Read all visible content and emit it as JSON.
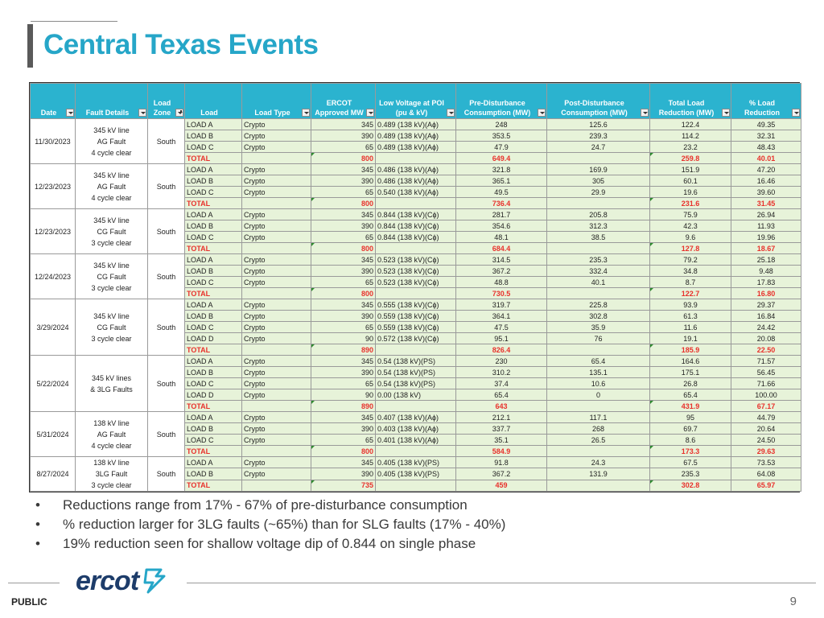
{
  "slide": {
    "title": "Central Texas Events",
    "classification": "PUBLIC",
    "page_number": "9",
    "logo": {
      "text": "ercot",
      "mark": "ercot-bolt-logo",
      "color": "#1d3c6a"
    },
    "accent_color": "#26a6c8",
    "header_color": "#2bb3cf",
    "row_color": "#e7f3d9",
    "total_color": "#e8312c"
  },
  "table": {
    "columns": [
      {
        "label": "Date",
        "filter": true,
        "active": false
      },
      {
        "label": "Fault Details",
        "filter": true,
        "active": false
      },
      {
        "label": "Load\nZone",
        "filter": true,
        "active": true
      },
      {
        "label": "Load",
        "filter": false,
        "active": false
      },
      {
        "label": "Load Type",
        "filter": true,
        "active": false
      },
      {
        "label": "ERCOT\nApproved MW",
        "filter": true,
        "active": false
      },
      {
        "label": "Low Voltage at POI\n(pu & kV)",
        "filter": true,
        "active": false
      },
      {
        "label": "Pre-Disturbance\nConsumption (MW)",
        "filter": true,
        "active": false
      },
      {
        "label": "Post-Disturbance\nConsumption (MW)",
        "filter": true,
        "active": false
      },
      {
        "label": "Total Load\nReduction (MW)",
        "filter": true,
        "active": false
      },
      {
        "label": "% Load\nReduction",
        "filter": true,
        "active": false
      }
    ],
    "events": [
      {
        "date": "11/30/2023",
        "fault": [
          "345 kV line",
          "AG Fault",
          "4 cycle clear"
        ],
        "zone": "South",
        "rows": [
          [
            "LOAD A",
            "Crypto",
            "345",
            "0.489 (138 kV)(Aɸ)",
            "248",
            "125.6",
            "122.4",
            "49.35"
          ],
          [
            "LOAD B",
            "Crypto",
            "390",
            "0.489 (138 kV)(Aɸ)",
            "353.5",
            "239.3",
            "114.2",
            "32.31"
          ],
          [
            "LOAD C",
            "Crypto",
            "65",
            "0.489 (138 kV)(Aɸ)",
            "47.9",
            "24.7",
            "23.2",
            "48.43"
          ]
        ],
        "total": [
          "TOTAL",
          "",
          "800",
          "",
          "649.4",
          "",
          "259.8",
          "40.01"
        ]
      },
      {
        "date": "12/23/2023",
        "fault": [
          "345 kV line",
          "AG Fault",
          "4 cycle clear"
        ],
        "zone": "South",
        "rows": [
          [
            "LOAD A",
            "Crypto",
            "345",
            "0.486 (138 kV)(Aɸ)",
            "321.8",
            "169.9",
            "151.9",
            "47.20"
          ],
          [
            "LOAD B",
            "Crypto",
            "390",
            "0.486 (138 kV)(Aɸ)",
            "365.1",
            "305",
            "60.1",
            "16.46"
          ],
          [
            "LOAD C",
            "Crypto",
            "65",
            "0.540 (138 kV)(Aɸ)",
            "49.5",
            "29.9",
            "19.6",
            "39.60"
          ]
        ],
        "total": [
          "TOTAL",
          "",
          "800",
          "",
          "736.4",
          "",
          "231.6",
          "31.45"
        ]
      },
      {
        "date": "12/23/2023",
        "fault": [
          "345 kV line",
          "CG Fault",
          "3 cycle clear"
        ],
        "zone": "South",
        "rows": [
          [
            "LOAD A",
            "Crypto",
            "345",
            "0.844 (138 kV)(Cɸ)",
            "281.7",
            "205.8",
            "75.9",
            "26.94"
          ],
          [
            "LOAD B",
            "Crypto",
            "390",
            "0.844 (138 kV)(Cɸ)",
            "354.6",
            "312.3",
            "42.3",
            "11.93"
          ],
          [
            "LOAD C",
            "Crypto",
            "65",
            "0.844 (138 kV)(Cɸ)",
            "48.1",
            "38.5",
            "9.6",
            "19.96"
          ]
        ],
        "total": [
          "TOTAL",
          "",
          "800",
          "",
          "684.4",
          "",
          "127.8",
          "18.67"
        ]
      },
      {
        "date": "12/24/2023",
        "fault": [
          "345 kV line",
          "CG Fault",
          "3 cycle clear"
        ],
        "zone": "South",
        "rows": [
          [
            "LOAD A",
            "Crypto",
            "345",
            "0.523 (138 kV)(Cɸ)",
            "314.5",
            "235.3",
            "79.2",
            "25.18"
          ],
          [
            "LOAD B",
            "Crypto",
            "390",
            "0.523 (138 kV)(Cɸ)",
            "367.2",
            "332.4",
            "34.8",
            "9.48"
          ],
          [
            "LOAD C",
            "Crypto",
            "65",
            "0.523 (138 kV)(Cɸ)",
            "48.8",
            "40.1",
            "8.7",
            "17.83"
          ]
        ],
        "total": [
          "TOTAL",
          "",
          "800",
          "",
          "730.5",
          "",
          "122.7",
          "16.80"
        ]
      },
      {
        "date": "3/29/2024",
        "fault": [
          "345 kV line",
          "CG Fault",
          "3 cycle clear"
        ],
        "zone": "South",
        "rows": [
          [
            "LOAD A",
            "Crypto",
            "345",
            "0.555 (138 kV)(Cɸ)",
            "319.7",
            "225.8",
            "93.9",
            "29.37"
          ],
          [
            "LOAD B",
            "Crypto",
            "390",
            "0.559 (138 kV)(Cɸ)",
            "364.1",
            "302.8",
            "61.3",
            "16.84"
          ],
          [
            "LOAD C",
            "Crypto",
            "65",
            "0.559 (138 kV)(Cɸ)",
            "47.5",
            "35.9",
            "11.6",
            "24.42"
          ],
          [
            "LOAD D",
            "Crypto",
            "90",
            "0.572 (138 kV)(Cɸ)",
            "95.1",
            "76",
            "19.1",
            "20.08"
          ]
        ],
        "total": [
          "TOTAL",
          "",
          "890",
          "",
          "826.4",
          "",
          "185.9",
          "22.50"
        ]
      },
      {
        "date": "5/22/2024",
        "fault": [
          "345 kV lines",
          "& 3LG Faults"
        ],
        "zone": "South",
        "rows": [
          [
            "LOAD A",
            "Crypto",
            "345",
            "0.54 (138 kV)(PS)",
            "230",
            "65.4",
            "164.6",
            "71.57"
          ],
          [
            "LOAD B",
            "Crypto",
            "390",
            "0.54 (138 kV)(PS)",
            "310.2",
            "135.1",
            "175.1",
            "56.45"
          ],
          [
            "LOAD C",
            "Crypto",
            "65",
            "0.54 (138 kV)(PS)",
            "37.4",
            "10.6",
            "26.8",
            "71.66"
          ],
          [
            "LOAD D",
            "Crypto",
            "90",
            "0.00 (138 kV)",
            "65.4",
            "0",
            "65.4",
            "100.00"
          ]
        ],
        "total": [
          "TOTAL",
          "",
          "890",
          "",
          "643",
          "",
          "431.9",
          "67.17"
        ]
      },
      {
        "date": "5/31/2024",
        "fault": [
          "138 kV line",
          "AG Fault",
          "4 cycle clear"
        ],
        "zone": "South",
        "rows": [
          [
            "LOAD A",
            "Crypto",
            "345",
            "0.407 (138 kV)(Aɸ)",
            "212.1",
            "117.1",
            "95",
            "44.79"
          ],
          [
            "LOAD B",
            "Crypto",
            "390",
            "0.403 (138 kV)(Aɸ)",
            "337.7",
            "268",
            "69.7",
            "20.64"
          ],
          [
            "LOAD C",
            "Crypto",
            "65",
            "0.401 (138 kV)(Aɸ)",
            "35.1",
            "26.5",
            "8.6",
            "24.50"
          ]
        ],
        "total": [
          "TOTAL",
          "",
          "800",
          "",
          "584.9",
          "",
          "173.3",
          "29.63"
        ]
      },
      {
        "date": "8/27/2024",
        "fault": [
          "138 kV line",
          "3LG Fault",
          "3 cycle clear"
        ],
        "zone": "South",
        "rows": [
          [
            "LOAD A",
            "Crypto",
            "345",
            "0.405 (138 kV)(PS)",
            "91.8",
            "24.3",
            "67.5",
            "73.53"
          ],
          [
            "LOAD B",
            "Crypto",
            "390",
            "0.405 (138 kV)(PS)",
            "367.2",
            "131.9",
            "235.3",
            "64.08"
          ]
        ],
        "total": [
          "TOTAL",
          "",
          "735",
          "",
          "459",
          "",
          "302.8",
          "65.97"
        ]
      }
    ]
  },
  "bullets": [
    "Reductions range from 17% - 67% of pre-disturbance consumption",
    "% reduction larger for 3LG faults (~65%) than for SLG faults (17% - 40%)",
    "19% reduction seen for shallow voltage dip of 0.844 on single phase"
  ]
}
